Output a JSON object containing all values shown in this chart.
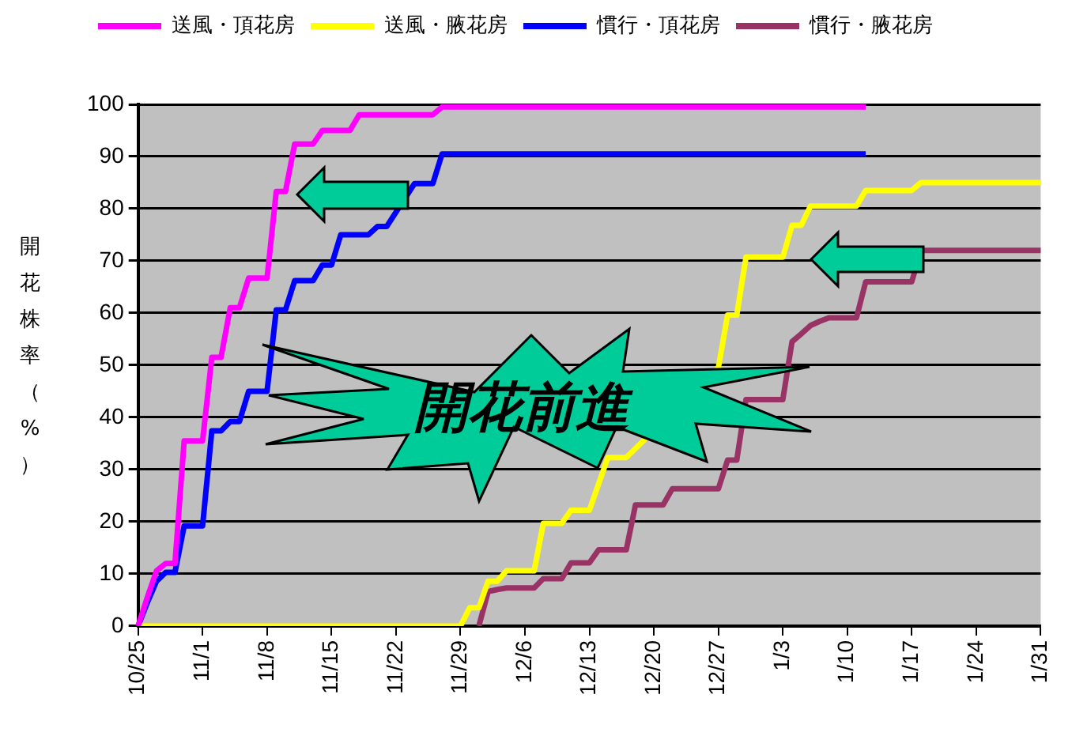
{
  "chart_data": {
    "type": "line",
    "ylabel": "開花株率（%）",
    "categories": [
      "10/25",
      null,
      null,
      null,
      null,
      null,
      null,
      "11/1",
      null,
      null,
      null,
      null,
      null,
      null,
      "11/8",
      null,
      null,
      null,
      null,
      null,
      null,
      "11/15",
      null,
      null,
      null,
      null,
      null,
      null,
      "11/22",
      null,
      null,
      null,
      null,
      null,
      null,
      "11/29",
      null,
      null,
      null,
      null,
      null,
      null,
      "12/6",
      null,
      null,
      null,
      null,
      null,
      null,
      "12/13",
      null,
      null,
      null,
      null,
      null,
      null,
      "12/20",
      null,
      null,
      null,
      null,
      null,
      null,
      "12/27",
      null,
      null,
      null,
      null,
      null,
      null,
      "1/3",
      null,
      null,
      null,
      null,
      null,
      null,
      "1/10",
      null,
      null,
      null,
      null,
      null,
      null,
      "1/17",
      null,
      null,
      null,
      null,
      null,
      null,
      "1/24",
      null,
      null,
      null,
      null,
      null,
      null,
      "1/31"
    ],
    "ylim": [
      0,
      100
    ],
    "yticks": [
      0,
      10,
      20,
      30,
      40,
      50,
      60,
      70,
      80,
      90,
      100
    ],
    "grid": "y",
    "legend": "top",
    "marker": "none",
    "line_style": "solid",
    "annotations": [
      "開花前進"
    ],
    "series": [
      {
        "name": "送風・頂花房",
        "color": "#ff00ff",
        "values": [
          0,
          5.5,
          10.6,
          12,
          12,
          35.5,
          35.5,
          35.5,
          51.5,
          51.5,
          61,
          61,
          66.7,
          66.7,
          66.7,
          83.3,
          83.3,
          92.4,
          92.4,
          92.4,
          95,
          95,
          95,
          95,
          98,
          98,
          98,
          98,
          98,
          98,
          98,
          98,
          98,
          99.5,
          99.5,
          99.5,
          99.5,
          99.5,
          99.5,
          99.5,
          99.5,
          99.5,
          99.5,
          99.5,
          99.5,
          99.5,
          99.5,
          99.5,
          99.5,
          99.5,
          99.5,
          99.5,
          99.5,
          99.5,
          99.5,
          99.5,
          99.5,
          99.5,
          99.5,
          99.5,
          99.5,
          99.5,
          99.5,
          99.5,
          99.5,
          99.5,
          99.5,
          99.5,
          99.5,
          99.5,
          99.5,
          99.5,
          99.5,
          99.5,
          99.5,
          99.5,
          99.5,
          99.5,
          99.5,
          99.5,
          null,
          null,
          null,
          null,
          null,
          null,
          null,
          null,
          null,
          null,
          null,
          null,
          null,
          null,
          null,
          null,
          null,
          null,
          null
        ]
      },
      {
        "name": "送風・腋花房",
        "color": "#ffff00",
        "values": [
          0,
          0,
          0,
          0,
          0,
          0,
          0,
          0,
          0,
          0,
          0,
          0,
          0,
          0,
          0,
          0,
          0,
          0,
          0,
          0,
          0,
          0,
          0,
          0,
          0,
          0,
          0,
          0,
          0,
          0,
          0,
          0,
          0,
          0,
          0,
          0,
          3.5,
          3.5,
          8.6,
          8.6,
          10.6,
          10.6,
          10.6,
          10.6,
          19.7,
          19.7,
          19.7,
          22.2,
          22.2,
          22.2,
          null,
          32.3,
          32.3,
          32.3,
          null,
          null,
          null,
          null,
          null,
          null,
          null,
          null,
          null,
          49.5,
          59.6,
          59.6,
          70.7,
          70.7,
          70.7,
          70.7,
          70.7,
          76.8,
          76.8,
          80.5,
          80.5,
          80.5,
          80.5,
          80.5,
          80.5,
          83.5,
          83.5,
          83.5,
          83.5,
          83.5,
          83.5,
          85,
          85,
          85,
          85,
          85,
          85,
          85,
          85,
          85,
          85,
          85,
          85,
          85,
          85
        ]
      },
      {
        "name": "慣行・頂花房",
        "color": "#0000ff",
        "values": [
          0,
          4.5,
          8.6,
          10.3,
          10.3,
          19.2,
          19.2,
          19.2,
          37.4,
          37.4,
          39.2,
          39.2,
          45,
          45,
          45,
          60.6,
          60.6,
          66.2,
          66.2,
          66.2,
          69.2,
          69.2,
          75,
          75,
          75,
          75,
          76.6,
          76.6,
          null,
          null,
          84.8,
          84.8,
          84.8,
          90.5,
          90.5,
          90.5,
          90.5,
          90.5,
          90.5,
          90.5,
          90.5,
          90.5,
          90.5,
          90.5,
          90.5,
          90.5,
          90.5,
          90.5,
          90.5,
          90.5,
          90.5,
          90.5,
          90.5,
          90.5,
          90.5,
          90.5,
          90.5,
          90.5,
          90.5,
          90.5,
          90.5,
          90.5,
          90.5,
          90.5,
          90.5,
          90.5,
          90.5,
          90.5,
          90.5,
          90.5,
          90.5,
          90.5,
          90.5,
          90.5,
          90.5,
          90.5,
          90.5,
          90.5,
          90.5,
          90.5,
          null,
          null,
          null,
          null,
          null,
          null,
          null,
          null,
          null,
          null,
          null,
          null,
          null,
          null,
          null,
          null,
          null,
          null,
          null
        ]
      },
      {
        "name": "慣行・腋花房",
        "color": "#993366",
        "values": [
          null,
          null,
          null,
          null,
          null,
          null,
          null,
          null,
          null,
          null,
          null,
          null,
          null,
          null,
          null,
          null,
          null,
          null,
          null,
          null,
          null,
          null,
          null,
          null,
          null,
          null,
          null,
          null,
          null,
          null,
          null,
          null,
          null,
          null,
          null,
          null,
          null,
          0,
          6.6,
          7,
          7.3,
          7.3,
          7.3,
          7.3,
          9.1,
          9.1,
          9.1,
          12.1,
          12.1,
          12.1,
          14.6,
          14.6,
          14.6,
          14.6,
          23.2,
          23.2,
          23.2,
          23.2,
          26.3,
          26.3,
          26.3,
          26.3,
          26.3,
          26.3,
          31.8,
          31.8,
          43.4,
          43.4,
          43.4,
          43.4,
          43.4,
          54.5,
          56,
          57.6,
          58.4,
          59.1,
          59.1,
          59.1,
          59.1,
          66,
          66,
          66,
          66,
          66,
          66,
          72,
          72,
          72,
          72,
          72,
          72,
          72,
          72,
          72,
          72,
          72,
          72,
          72,
          72
        ]
      }
    ]
  }
}
